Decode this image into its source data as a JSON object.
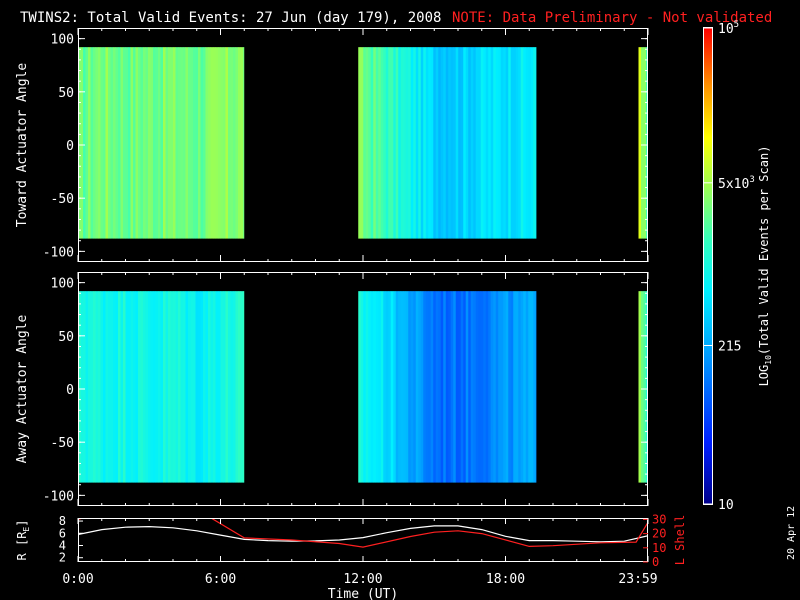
{
  "header": {
    "title": "TWINS2: Total Valid Events: 27 Jun (day 179), 2008",
    "note": "NOTE: Data Preliminary - Not validated",
    "note_color": "#ff2020"
  },
  "side_date": "20 Apr 12",
  "chart_data": [
    {
      "type": "heatmap",
      "ylabel": "Toward Actuator Angle",
      "ylim": [
        -110,
        110
      ],
      "yticks": [
        "100",
        "50",
        "0",
        "-50",
        "-100"
      ],
      "xlim_hours": [
        0,
        24
      ],
      "data_angle_range": [
        -88,
        92
      ],
      "segments": [
        {
          "start_hour": 0.0,
          "end_hour": 7.0
        },
        {
          "start_hour": 11.8,
          "end_hour": 19.3
        },
        {
          "start_hour": 23.6,
          "end_hour": 24.0
        }
      ],
      "log10_events_profile": [
        {
          "hour": 0.0,
          "value": 3.4
        },
        {
          "hour": 1.0,
          "value": 3.55
        },
        {
          "hour": 2.0,
          "value": 3.45
        },
        {
          "hour": 3.0,
          "value": 3.5
        },
        {
          "hour": 4.0,
          "value": 3.5
        },
        {
          "hour": 5.0,
          "value": 3.45
        },
        {
          "hour": 6.0,
          "value": 3.55
        },
        {
          "hour": 7.0,
          "value": 3.6
        },
        {
          "hour": 11.8,
          "value": 3.5
        },
        {
          "hour": 13.0,
          "value": 3.2
        },
        {
          "hour": 14.0,
          "value": 2.9
        },
        {
          "hour": 15.0,
          "value": 2.6
        },
        {
          "hour": 16.0,
          "value": 2.6
        },
        {
          "hour": 17.0,
          "value": 2.7
        },
        {
          "hour": 18.0,
          "value": 2.75
        },
        {
          "hour": 19.3,
          "value": 2.8
        },
        {
          "hour": 23.6,
          "value": 4.0
        },
        {
          "hour": 24.0,
          "value": 3.0
        }
      ]
    },
    {
      "type": "heatmap",
      "ylabel": "Away Actuator Angle",
      "ylim": [
        -110,
        110
      ],
      "yticks": [
        "100",
        "50",
        "0",
        "-50",
        "-100"
      ],
      "xlim_hours": [
        0,
        24
      ],
      "data_angle_range": [
        -88,
        92
      ],
      "segments": [
        {
          "start_hour": 0.0,
          "end_hour": 7.0
        },
        {
          "start_hour": 11.8,
          "end_hour": 19.3
        },
        {
          "start_hour": 23.6,
          "end_hour": 24.0
        }
      ],
      "log10_events_profile": [
        {
          "hour": 0.0,
          "value": 3.05
        },
        {
          "hour": 1.0,
          "value": 2.95
        },
        {
          "hour": 2.0,
          "value": 3.0
        },
        {
          "hour": 3.0,
          "value": 2.9
        },
        {
          "hour": 4.0,
          "value": 3.0
        },
        {
          "hour": 5.0,
          "value": 2.85
        },
        {
          "hour": 6.0,
          "value": 3.0
        },
        {
          "hour": 7.0,
          "value": 3.05
        },
        {
          "hour": 11.8,
          "value": 2.95
        },
        {
          "hour": 13.0,
          "value": 2.7
        },
        {
          "hour": 14.0,
          "value": 2.3
        },
        {
          "hour": 15.0,
          "value": 2.0
        },
        {
          "hour": 16.0,
          "value": 2.0
        },
        {
          "hour": 17.0,
          "value": 2.1
        },
        {
          "hour": 18.0,
          "value": 2.2
        },
        {
          "hour": 19.3,
          "value": 2.3
        },
        {
          "hour": 23.6,
          "value": 3.8
        },
        {
          "hour": 24.0,
          "value": 3.0
        }
      ]
    },
    {
      "type": "line",
      "xlabel": "Time (UT)",
      "xticks": [
        {
          "hour": 0,
          "label": "0:00"
        },
        {
          "hour": 6,
          "label": "6:00"
        },
        {
          "hour": 12,
          "label": "12:00"
        },
        {
          "hour": 18,
          "label": "18:00"
        },
        {
          "hour": 23.983,
          "label": "23:59"
        }
      ],
      "left_axis": {
        "label": "R [R",
        "label_sub": "E",
        "label_end": "]",
        "ticks": [
          "8",
          "6",
          "4",
          "2"
        ],
        "ylim": [
          1.3,
          8.5
        ],
        "color": "#ffffff"
      },
      "right_axis": {
        "label": "L Shell",
        "ticks": [
          "30",
          "20",
          "10",
          "0"
        ],
        "ylim": [
          0,
          31
        ],
        "color": "#ff2020"
      },
      "series": [
        {
          "axis": "left",
          "color": "#ffffff",
          "points": [
            {
              "x": 0,
              "y": 5.8
            },
            {
              "x": 1,
              "y": 6.6
            },
            {
              "x": 2,
              "y": 7.0
            },
            {
              "x": 3,
              "y": 7.1
            },
            {
              "x": 4,
              "y": 6.9
            },
            {
              "x": 5,
              "y": 6.4
            },
            {
              "x": 6,
              "y": 5.7
            },
            {
              "x": 7,
              "y": 5.0
            },
            {
              "x": 8,
              "y": 4.8
            },
            {
              "x": 9,
              "y": 4.7
            },
            {
              "x": 10,
              "y": 4.75
            },
            {
              "x": 11,
              "y": 4.9
            },
            {
              "x": 12,
              "y": 5.3
            },
            {
              "x": 13,
              "y": 6.1
            },
            {
              "x": 14,
              "y": 6.8
            },
            {
              "x": 15,
              "y": 7.2
            },
            {
              "x": 16,
              "y": 7.2
            },
            {
              "x": 17,
              "y": 6.6
            },
            {
              "x": 18,
              "y": 5.5
            },
            {
              "x": 19,
              "y": 4.8
            },
            {
              "x": 20,
              "y": 4.8
            },
            {
              "x": 21,
              "y": 4.7
            },
            {
              "x": 22,
              "y": 4.6
            },
            {
              "x": 23,
              "y": 4.7
            },
            {
              "x": 24,
              "y": 5.6
            }
          ]
        },
        {
          "axis": "right",
          "color": "#ff2020",
          "points": [
            {
              "x": 0,
              "y": 30
            },
            {
              "x": 0.6,
              "y": 33
            },
            {
              "x": 5.6,
              "y": 31
            },
            {
              "x": 7,
              "y": 17
            },
            {
              "x": 9,
              "y": 15.5
            },
            {
              "x": 11,
              "y": 13
            },
            {
              "x": 12,
              "y": 10.5
            },
            {
              "x": 14,
              "y": 18
            },
            {
              "x": 15,
              "y": 21
            },
            {
              "x": 16,
              "y": 22
            },
            {
              "x": 17,
              "y": 20
            },
            {
              "x": 19,
              "y": 11
            },
            {
              "x": 20,
              "y": 11.5
            },
            {
              "x": 22,
              "y": 13.5
            },
            {
              "x": 23.5,
              "y": 14
            },
            {
              "x": 24,
              "y": 28
            }
          ]
        }
      ]
    }
  ],
  "colorbar": {
    "label_prefix": "LOG",
    "label_sub": "10",
    "label_suffix": "(Total Valid Events per Scan)",
    "range_log10": [
      1,
      5
    ],
    "ticks": [
      {
        "log10": 5,
        "label": "10",
        "sup": "5"
      },
      {
        "log10": 3.699,
        "label": "5x10",
        "sup": "3"
      },
      {
        "log10": 2.332,
        "label": "215",
        "sup": ""
      },
      {
        "log10": 1,
        "label": "10",
        "sup": ""
      }
    ]
  }
}
